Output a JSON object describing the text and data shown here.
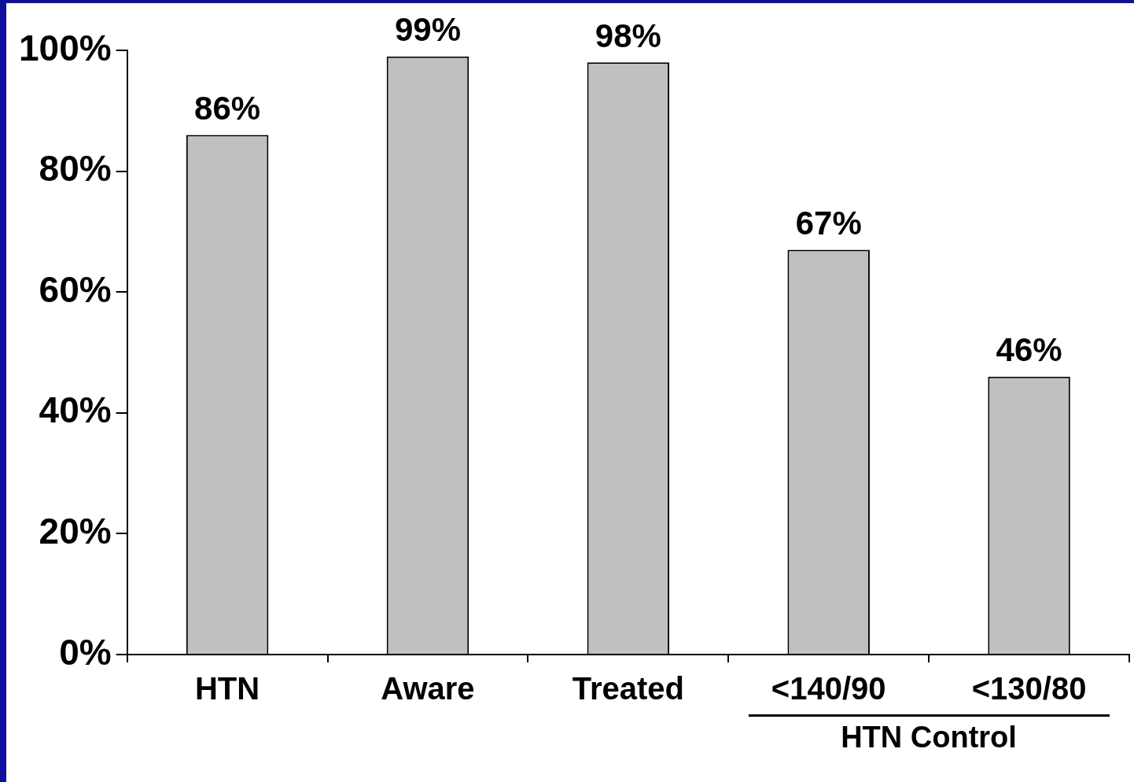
{
  "chart_data": {
    "type": "bar",
    "categories": [
      "HTN",
      "Aware",
      "Treated",
      "<140/90",
      "<130/80"
    ],
    "values": [
      86,
      99,
      98,
      67,
      46
    ],
    "color": "#c0c0c0",
    "data_labels": true,
    "value_labels": [
      "86%",
      "99%",
      "98%",
      "67%",
      "46%"
    ],
    "ylim": [
      0,
      100
    ],
    "yticks": [
      {
        "value": 0,
        "label": "0%"
      },
      {
        "value": 20,
        "label": "20%"
      },
      {
        "value": 40,
        "label": "40%"
      },
      {
        "value": 60,
        "label": "60%"
      },
      {
        "value": 80,
        "label": "80%"
      },
      {
        "value": 100,
        "label": "100%"
      }
    ],
    "annotations": [
      "HTN Control"
    ],
    "grid": false,
    "legend": false
  }
}
